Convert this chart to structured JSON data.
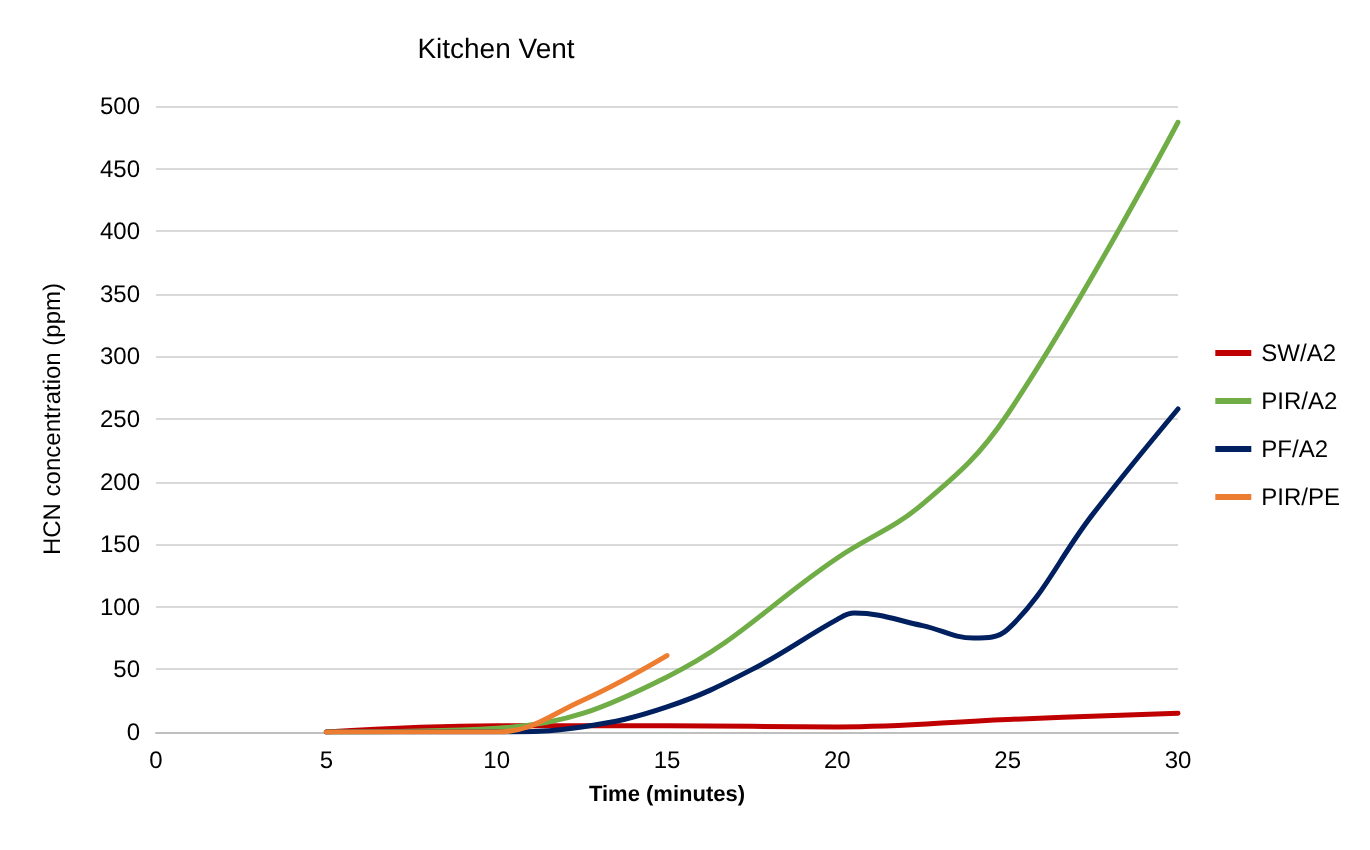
{
  "chart_data": {
    "type": "line",
    "title": "Kitchen Vent",
    "xlabel": "Time (minutes)",
    "ylabel": "HCN concentration (ppm)",
    "xlim": [
      0,
      30
    ],
    "xticks": [
      0,
      5,
      10,
      15,
      20,
      25,
      30
    ],
    "ylim": [
      0,
      500
    ],
    "yticks": [
      0,
      50,
      100,
      150,
      200,
      250,
      300,
      350,
      400,
      450,
      500
    ],
    "grid": "y",
    "legend": "right",
    "marker": "none",
    "line_style": "solid",
    "series": [
      {
        "name": "SW/A2",
        "color": "#c00000",
        "x": [
          5,
          10,
          15,
          20,
          25,
          30
        ],
        "values": [
          0,
          5,
          5,
          4,
          10,
          15
        ]
      },
      {
        "name": "PIR/A2",
        "color": "#70ad47",
        "x": [
          5,
          10,
          15,
          20,
          22.5,
          25,
          30
        ],
        "values": [
          0,
          3,
          44,
          139,
          182,
          254,
          487
        ]
      },
      {
        "name": "PF/A2",
        "color": "#002060",
        "x": [
          5,
          10,
          12.5,
          15,
          17.5,
          20,
          20.5,
          22.5,
          24,
          25,
          27.5,
          30
        ],
        "values": [
          0,
          0,
          4,
          20,
          50,
          90,
          95,
          85,
          75,
          82,
          174,
          258
        ]
      },
      {
        "name": "PIR/PE",
        "color": "#ed7d31",
        "x": [
          5,
          10,
          12.5,
          15
        ],
        "values": [
          0,
          0,
          25,
          61
        ]
      }
    ]
  }
}
